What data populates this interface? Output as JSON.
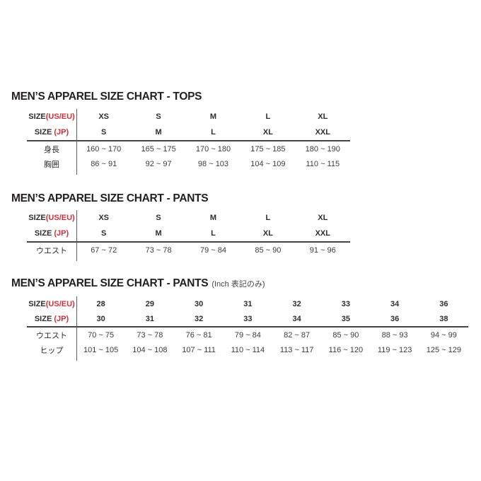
{
  "page": {
    "background": "#ffffff",
    "language": "ja/en"
  },
  "colors": {
    "accent_red": "#cf323b",
    "title_black": "#231f20",
    "rule_dark": "#454545",
    "divider_gray": "#5f5f5f"
  },
  "tables": [
    {
      "title": "MEN’S APPAREL SIZE CHART - TOPS",
      "note": "",
      "size_rows": [
        {
          "label": "SIZE",
          "label_suffix": "(US/EU)",
          "values": [
            "XS",
            "S",
            "M",
            "L",
            "XL"
          ]
        },
        {
          "label": "SIZE ",
          "label_suffix": "(JP)",
          "values": [
            "S",
            "M",
            "L",
            "XL",
            "XXL"
          ]
        }
      ],
      "measure_rows": [
        {
          "label": "身長",
          "values": [
            "160 ~ 170",
            "165 ~ 175",
            "170 ~ 180",
            "175 ~ 185",
            "180 ~ 190"
          ]
        },
        {
          "label": "胸囲",
          "values": [
            "86 ~ 91",
            "92 ~ 97",
            "98 ~ 103",
            "104 ~ 109",
            "110 ~ 115"
          ]
        }
      ]
    },
    {
      "title": "MEN’S APPAREL SIZE CHART - PANTS",
      "note": "",
      "size_rows": [
        {
          "label": "SIZE",
          "label_suffix": "(US/EU)",
          "values": [
            "XS",
            "S",
            "M",
            "L",
            "XL"
          ]
        },
        {
          "label": "SIZE ",
          "label_suffix": "(JP)",
          "values": [
            "S",
            "M",
            "L",
            "XL",
            "XXL"
          ]
        }
      ],
      "measure_rows": [
        {
          "label": "ウエスト",
          "values": [
            "67 ~ 72",
            "73 ~ 78",
            "79 ~ 84",
            "85 ~ 90",
            "91 ~ 96"
          ]
        }
      ]
    },
    {
      "title": "MEN’S APPAREL SIZE CHART - PANTS",
      "note": "(Inch 表記のみ)",
      "size_rows": [
        {
          "label": "SIZE",
          "label_suffix": "(US/EU)",
          "values": [
            "28",
            "29",
            "30",
            "31",
            "32",
            "33",
            "34",
            "36"
          ]
        },
        {
          "label": "SIZE ",
          "label_suffix": "(JP)",
          "values": [
            "30",
            "31",
            "32",
            "33",
            "34",
            "35",
            "36",
            "38"
          ]
        }
      ],
      "measure_rows": [
        {
          "label": "ウエスト",
          "values": [
            "70 ~ 75",
            "73 ~ 78",
            "76 ~ 81",
            "79 ~ 84",
            "82 ~ 87",
            "85 ~ 90",
            "88 ~ 93",
            "94 ~ 99"
          ]
        },
        {
          "label": "ヒップ",
          "values": [
            "101 ~ 105",
            "104 ~ 108",
            "107 ~ 111",
            "110 ~ 114",
            "113 ~ 117",
            "116 ~ 120",
            "119 ~ 123",
            "125 ~ 129"
          ]
        }
      ]
    }
  ]
}
